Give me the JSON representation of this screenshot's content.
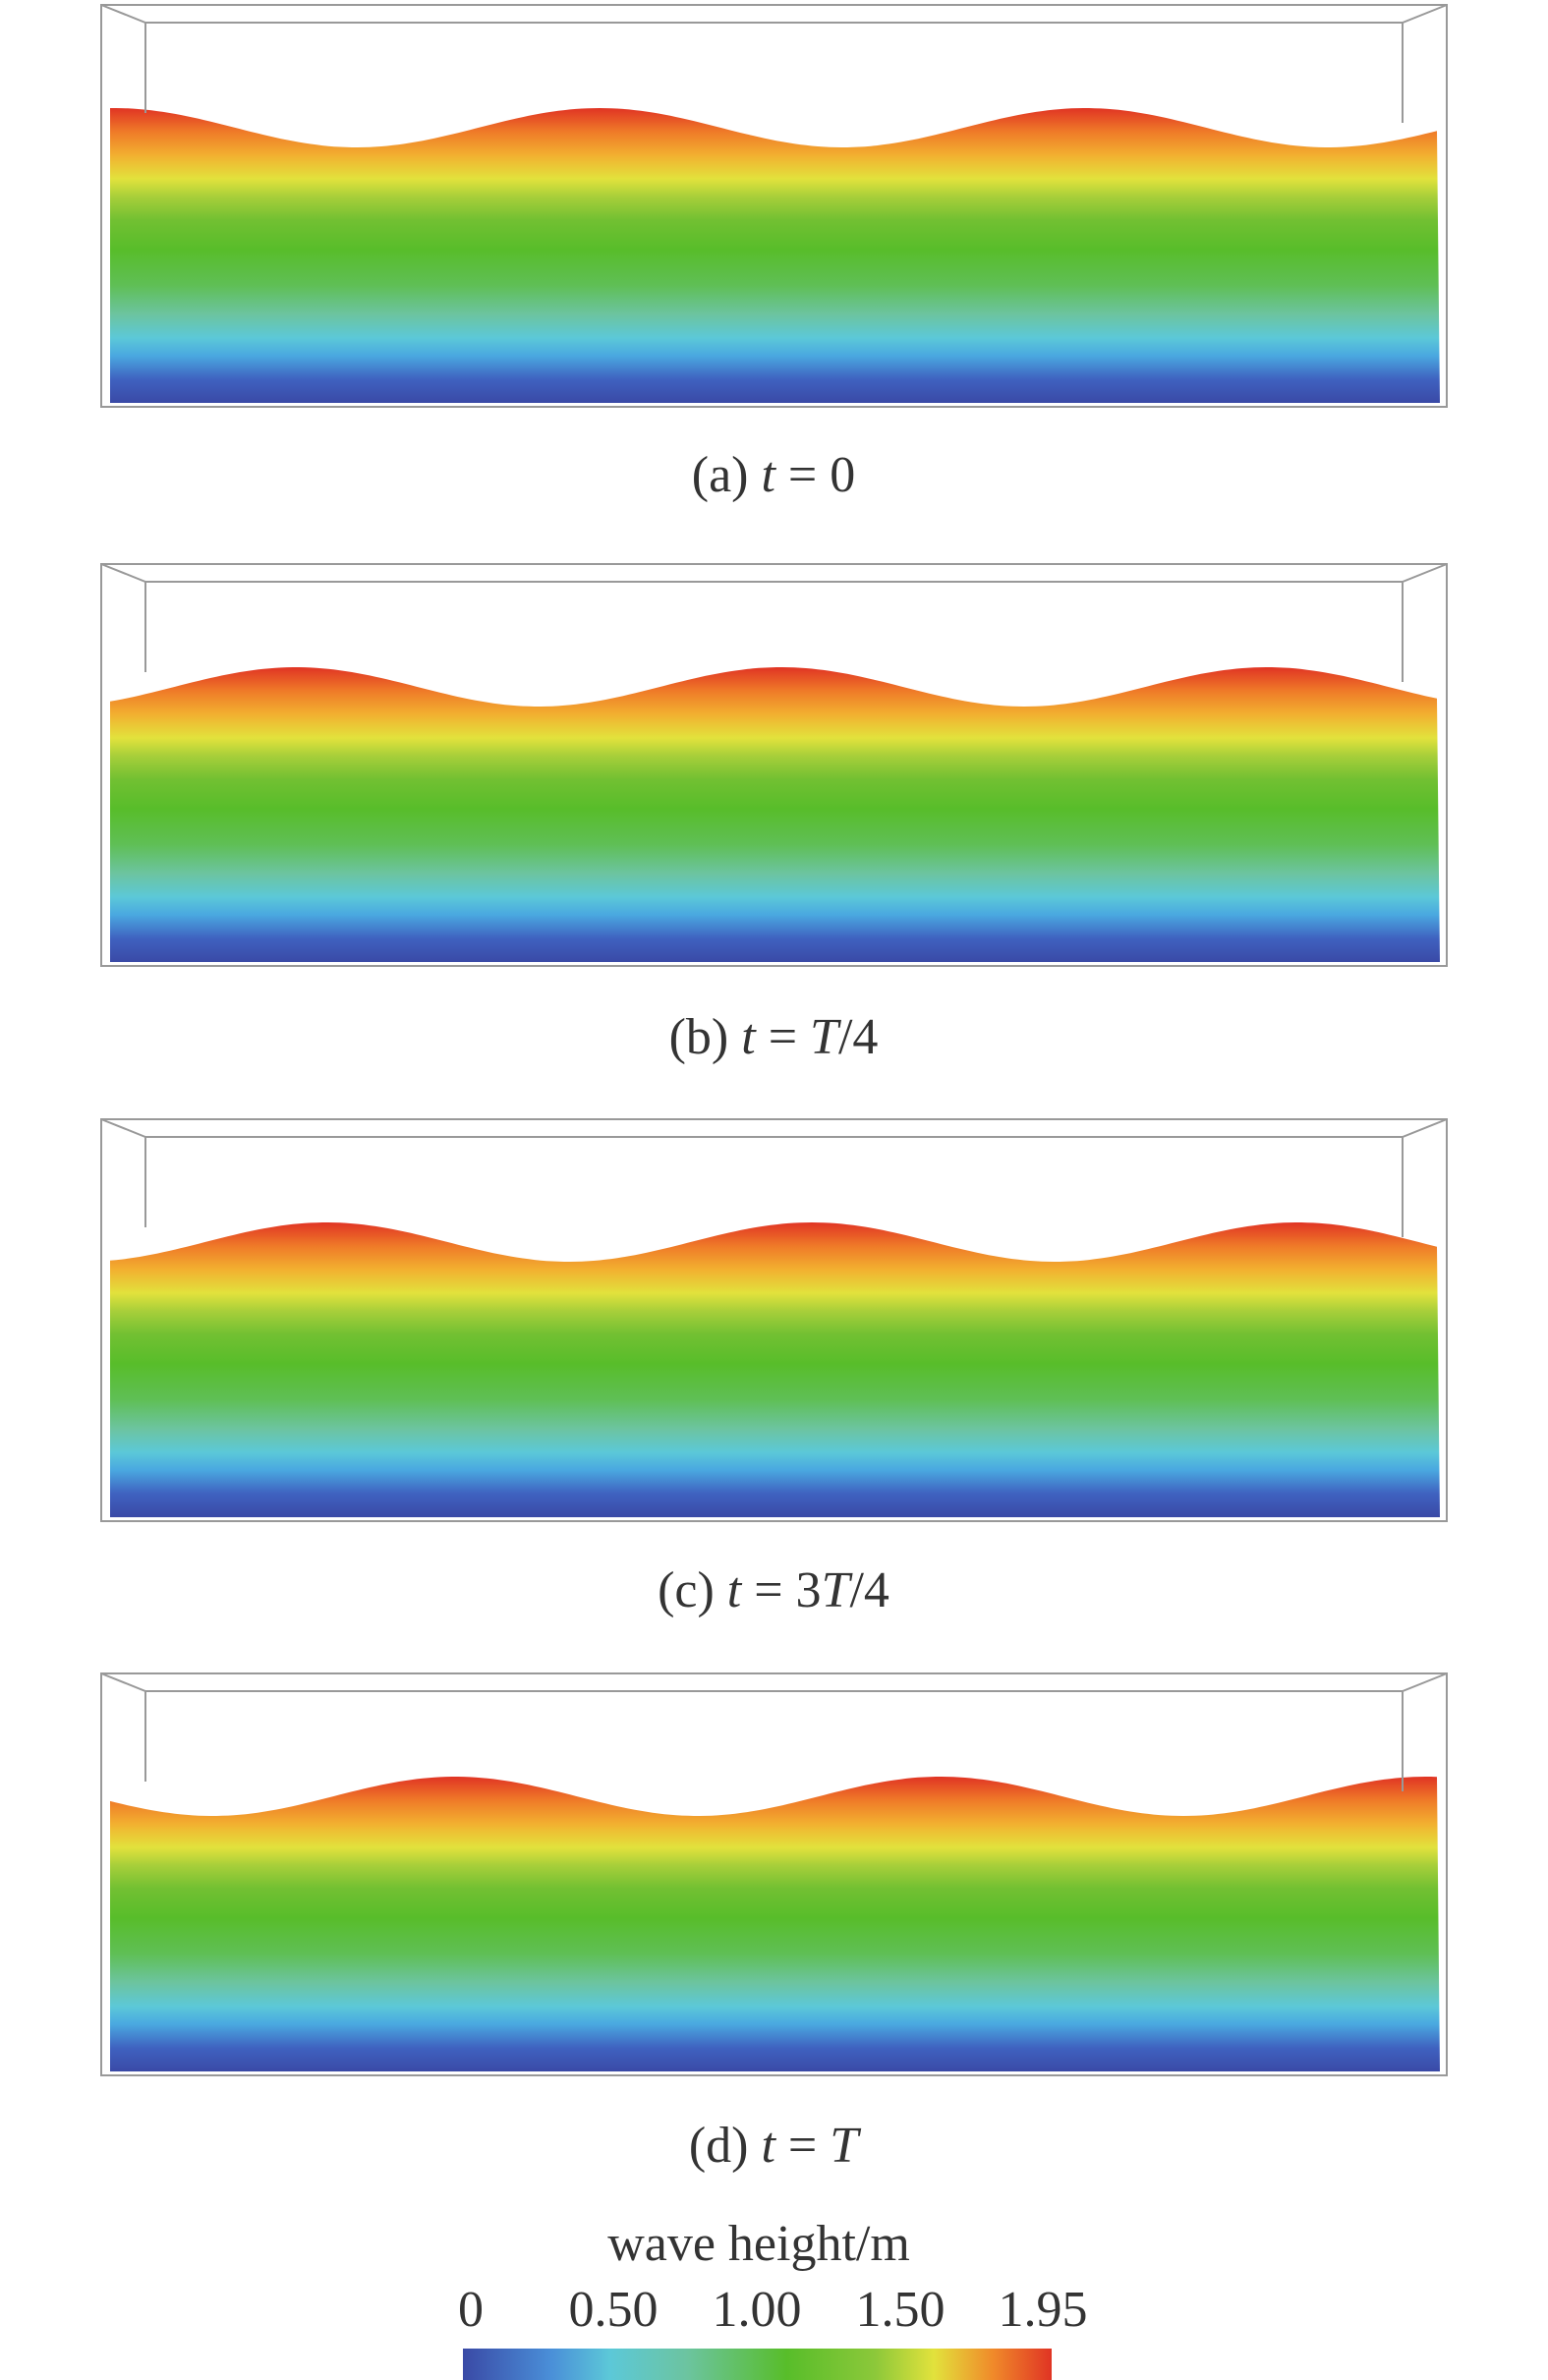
{
  "panels": [
    {
      "caption": [
        "(a) ",
        "t",
        " = 0"
      ]
    },
    {
      "caption": [
        "(b) ",
        "t",
        " = ",
        "T",
        "/4"
      ]
    },
    {
      "caption": [
        "(c) ",
        "t",
        " = 3",
        "T",
        "/4"
      ]
    },
    {
      "caption": [
        "(d) ",
        "t",
        " = ",
        "T"
      ]
    }
  ],
  "colorbar": {
    "title": "wave height/m",
    "ticks": [
      "0",
      "0.50",
      "1.00",
      "1.50",
      "1.95"
    ]
  }
}
